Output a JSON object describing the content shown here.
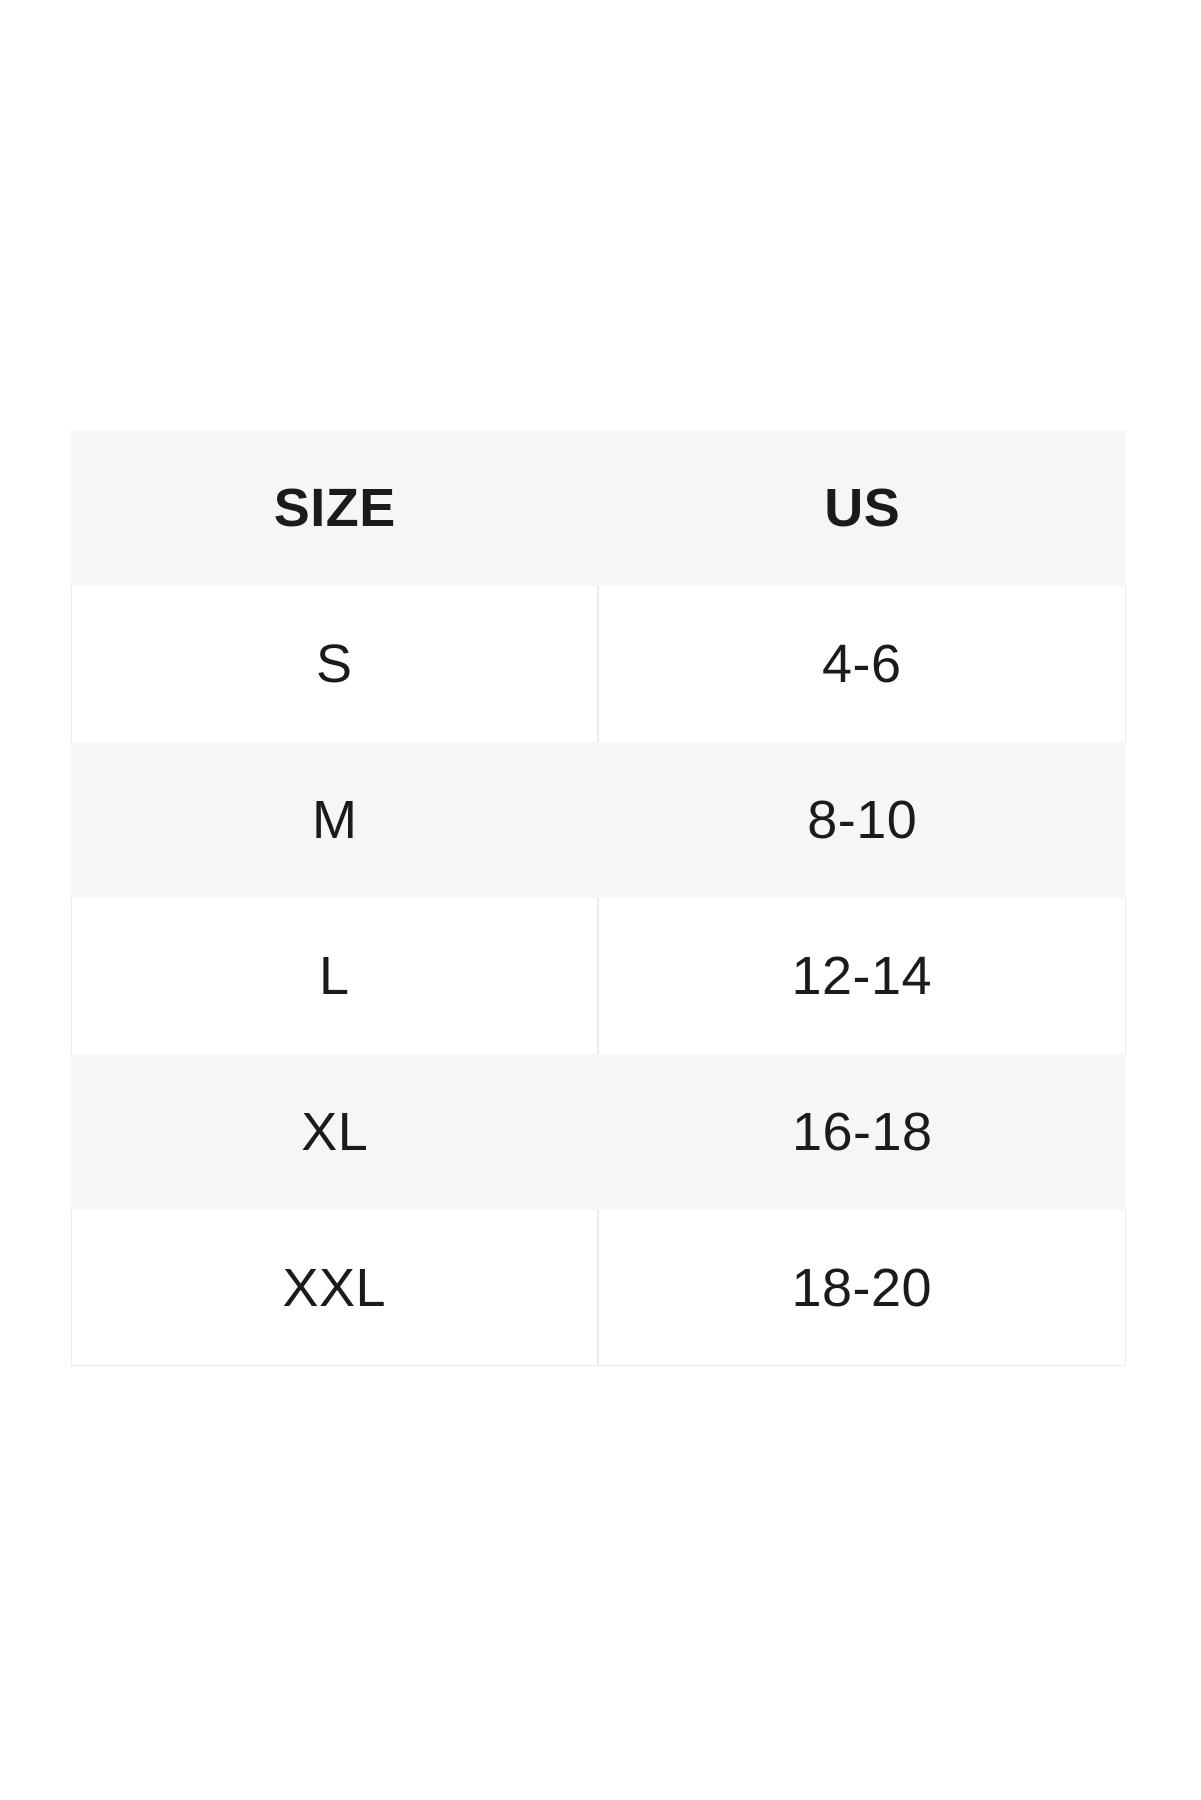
{
  "table": {
    "columns": [
      {
        "label": "SIZE"
      },
      {
        "label": "US"
      }
    ],
    "rows": [
      {
        "size": "S",
        "us": "4-6"
      },
      {
        "size": "M",
        "us": "8-10"
      },
      {
        "size": "L",
        "us": "12-14"
      },
      {
        "size": "XL",
        "us": "16-18"
      },
      {
        "size": "XXL",
        "us": "18-20"
      }
    ],
    "colors": {
      "header_bg": "#f6f6f6",
      "row_bg": "#ffffff",
      "row_alt_bg": "#f6f6f6",
      "divider": "#e9e9e9",
      "text": "#1b1b1b",
      "page_bg": "#ffffff"
    }
  },
  "chart_data": {
    "type": "table",
    "title": "",
    "columns": [
      "SIZE",
      "US"
    ],
    "rows": [
      [
        "S",
        "4-6"
      ],
      [
        "M",
        "8-10"
      ],
      [
        "L",
        "12-14"
      ],
      [
        "XL",
        "16-18"
      ],
      [
        "XXL",
        "18-20"
      ]
    ],
    "layout_hints": {
      "header_fill": "light-gray",
      "body_fill_pattern": "alternating white/light-gray starting white",
      "column_divider_visible_on": "white rows only",
      "text_align": "center"
    }
  }
}
